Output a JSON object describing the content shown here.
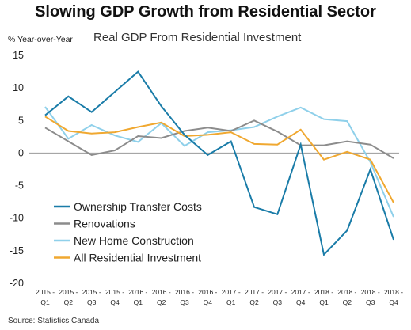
{
  "title": "Slowing GDP Growth from Residential Sector",
  "subtitle": "Real  GDP From Residential Investment",
  "y_unit": "% Year-over-Year",
  "source": "Source: Statistics Canada",
  "chart_data": {
    "type": "line",
    "ylim": [
      -20,
      15
    ],
    "yticks": [
      "15",
      "10",
      "5",
      "0",
      "-5",
      "-10",
      "-15",
      "-20"
    ],
    "x": [
      {
        "year": "2015 -",
        "q": "Q1"
      },
      {
        "year": "2015 -",
        "q": "Q2"
      },
      {
        "year": "2015 -",
        "q": "Q3"
      },
      {
        "year": "2015 -",
        "q": "Q4"
      },
      {
        "year": "2016 -",
        "q": "Q1"
      },
      {
        "year": "2016 -",
        "q": "Q2"
      },
      {
        "year": "2016 -",
        "q": "Q3"
      },
      {
        "year": "2016 -",
        "q": "Q4"
      },
      {
        "year": "2017 -",
        "q": "Q1"
      },
      {
        "year": "2017 -",
        "q": "Q2"
      },
      {
        "year": "2017 -",
        "q": "Q3"
      },
      {
        "year": "2017 -",
        "q": "Q4"
      },
      {
        "year": "2018 -",
        "q": "Q1"
      },
      {
        "year": "2018 -",
        "q": "Q2"
      },
      {
        "year": "2018 -",
        "q": "Q3"
      },
      {
        "year": "2018 -",
        "q": "Q4"
      }
    ],
    "grid": false,
    "legend_position": "bottom-left",
    "series": [
      {
        "name": "Ownership Transfer Costs",
        "color": "#1a7ca8",
        "values": [
          5.8,
          8.7,
          6.3,
          9.4,
          12.5,
          7.2,
          2.8,
          -0.3,
          1.8,
          -8.3,
          -9.4,
          1.3,
          -15.6,
          -11.9,
          -2.5,
          -13.3
        ]
      },
      {
        "name": "Renovations",
        "color": "#8c8c8c",
        "values": [
          3.9,
          1.8,
          -0.3,
          0.4,
          2.6,
          2.3,
          3.4,
          3.9,
          3.4,
          5.0,
          3.3,
          1.2,
          1.2,
          1.8,
          1.3,
          -0.8
        ]
      },
      {
        "name": "New Home Construction",
        "color": "#8fd0ea",
        "values": [
          7.1,
          2.2,
          4.3,
          2.7,
          1.7,
          4.6,
          1.1,
          3.2,
          3.5,
          4.0,
          5.6,
          7.0,
          5.2,
          4.9,
          -1.4,
          -9.8
        ]
      },
      {
        "name": "All Residential Investment",
        "color": "#f0a830",
        "values": [
          5.6,
          3.4,
          3.0,
          3.2,
          4.0,
          4.7,
          2.6,
          2.8,
          3.2,
          1.4,
          1.3,
          3.6,
          -1.0,
          0.2,
          -1.0,
          -7.6
        ]
      }
    ]
  }
}
